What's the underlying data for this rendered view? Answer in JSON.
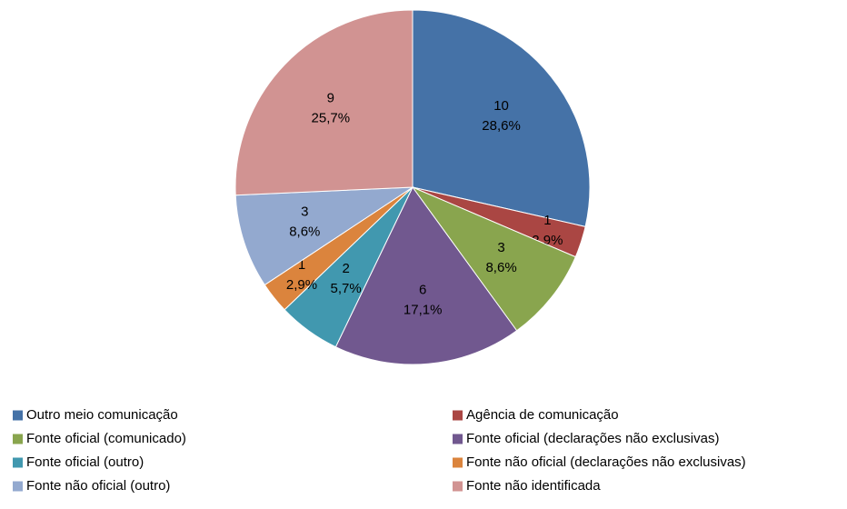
{
  "chart_data": {
    "type": "pie",
    "categories": [
      "Outro meio comunicação",
      "Agência de comunicação",
      "Fonte oficial (comunicado)",
      "Fonte oficial (declarações não exclusivas)",
      "Fonte oficial (outro)",
      "Fonte não oficial (declarações não exclusivas)",
      "Fonte não oficial (outro)",
      "Fonte não identificada"
    ],
    "values": [
      10,
      1,
      3,
      6,
      2,
      1,
      3,
      9
    ],
    "percentages": [
      28.6,
      2.9,
      8.6,
      17.1,
      5.7,
      2.9,
      8.6,
      25.7
    ],
    "percentage_labels": [
      "28,6%",
      "2,9%",
      "8,6%",
      "17,1%",
      "5,7%",
      "2,9%",
      "8,6%",
      "25,7%"
    ],
    "colors": [
      "#4572a7",
      "#aa4643",
      "#89a54e",
      "#71588f",
      "#4198af",
      "#db843d",
      "#93a9cf",
      "#d19392"
    ],
    "legend": "bottom"
  }
}
